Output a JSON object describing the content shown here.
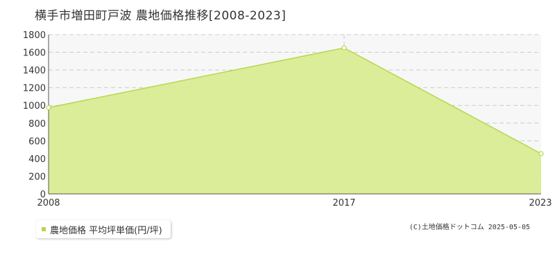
{
  "title": "横手市増田町戸波 農地価格推移[2008-2023]",
  "legend": {
    "label": "農地価格 平均坪単価(円/坪)"
  },
  "copyright": "(C)土地価格ドットコム 2025-05-05",
  "colors": {
    "fill": "#d9ec93",
    "line": "#b5d84c",
    "grid": "#cccccc",
    "plot_bg": "#f7f7f7"
  },
  "chart_data": {
    "type": "area",
    "x": [
      2008,
      2017,
      2023
    ],
    "series": [
      {
        "name": "農地価格 平均坪単価(円/坪)",
        "values": [
          975,
          1650,
          455
        ]
      }
    ],
    "x_ticks": [
      "2008",
      "2017",
      "2023"
    ],
    "y_ticks": [
      "0",
      "200",
      "400",
      "600",
      "800",
      "1000",
      "1200",
      "1400",
      "1600",
      "1800"
    ],
    "ylim": [
      0,
      1800
    ],
    "xlim": [
      2008,
      2023
    ],
    "grid": true,
    "legend_position": "bottom-left"
  }
}
